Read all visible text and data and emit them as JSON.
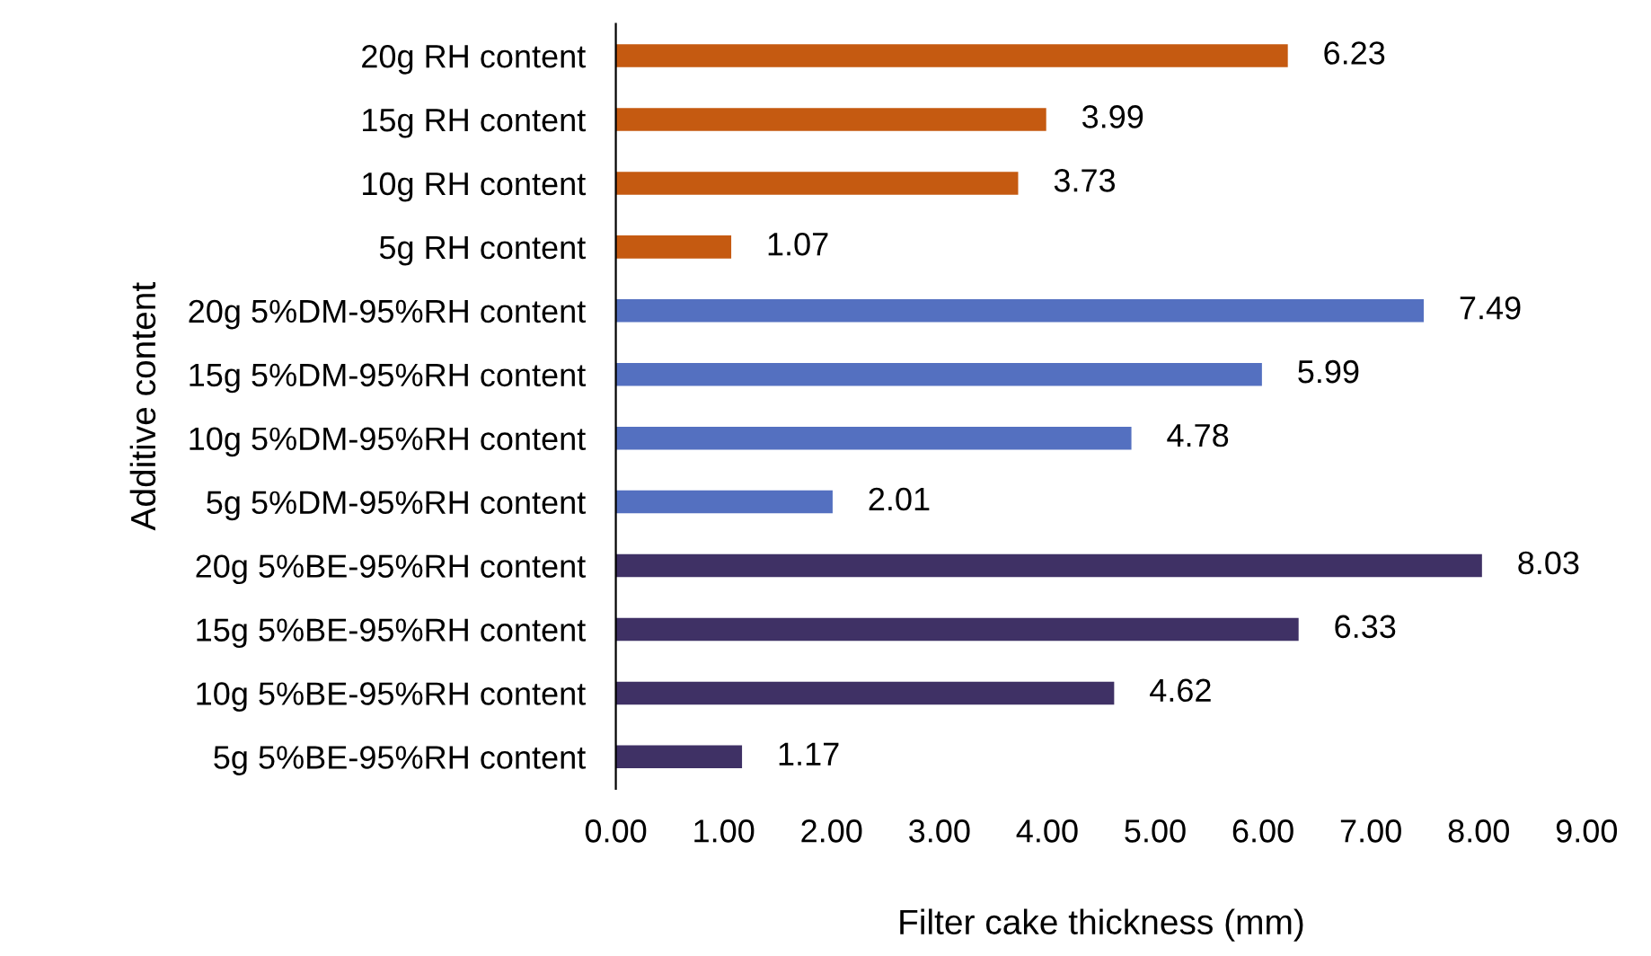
{
  "chart_data": {
    "type": "bar",
    "orientation": "horizontal",
    "xlabel": "Filter cake thickness (mm)",
    "ylabel": "Additive content",
    "categories": [
      "20g RH content",
      "15g RH content",
      "10g RH content",
      "5g RH content",
      "20g 5%DM-95%RH content",
      "15g 5%DM-95%RH content",
      "10g 5%DM-95%RH content",
      "5g 5%DM-95%RH content",
      "20g 5%BE-95%RH content",
      "15g 5%BE-95%RH content",
      "10g 5%BE-95%RH content",
      "5g 5%BE-95%RH content"
    ],
    "values": [
      6.23,
      3.99,
      3.73,
      1.07,
      7.49,
      5.99,
      4.78,
      2.01,
      8.03,
      6.33,
      4.62,
      1.17
    ],
    "colors": [
      "#c55a11",
      "#c55a11",
      "#c55a11",
      "#c55a11",
      "#5470c0",
      "#5470c0",
      "#5470c0",
      "#5470c0",
      "#3f3165",
      "#3f3165",
      "#3f3165",
      "#3f3165"
    ],
    "xlim": [
      0,
      9
    ],
    "xticks": [
      {
        "value": 0,
        "label": "0.00"
      },
      {
        "value": 1,
        "label": "1.00"
      },
      {
        "value": 2,
        "label": "2.00"
      },
      {
        "value": 3,
        "label": "3.00"
      },
      {
        "value": 4,
        "label": "4.00"
      },
      {
        "value": 5,
        "label": "5.00"
      },
      {
        "value": 6,
        "label": "6.00"
      },
      {
        "value": 7,
        "label": "7.00"
      },
      {
        "value": 8,
        "label": "8.00"
      },
      {
        "value": 9,
        "label": "9.00"
      }
    ],
    "data_labels": true,
    "grid": false
  }
}
